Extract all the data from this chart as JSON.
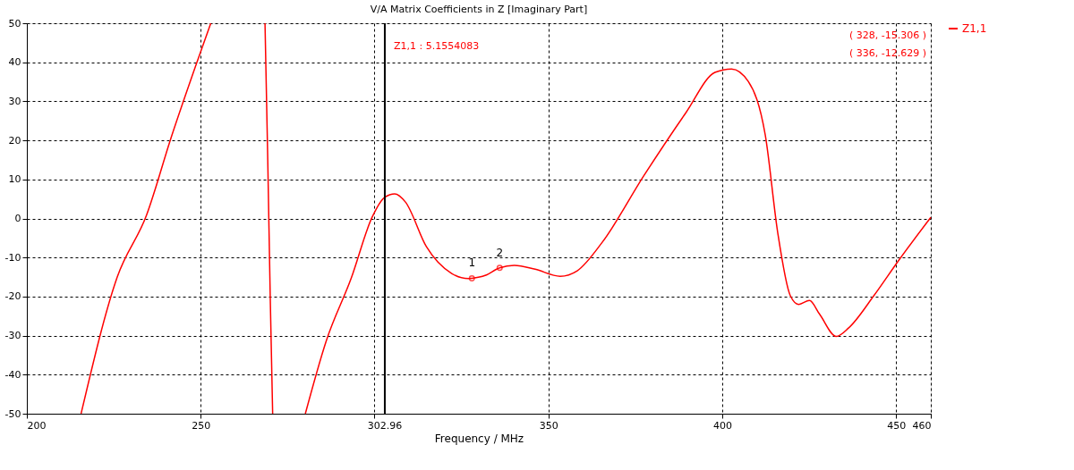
{
  "chart_data": {
    "type": "line",
    "title": "V/A Matrix Coefficients in Z [Imaginary Part]",
    "xlabel": "Frequency / MHz",
    "xlim": [
      200,
      460
    ],
    "xticks": [
      200,
      250,
      {
        "value": 300,
        "label": null
      },
      350,
      400,
      450,
      460
    ],
    "ylim": [
      -50,
      50
    ],
    "yticks": [
      -50,
      -40,
      -30,
      -20,
      -10,
      0,
      10,
      20,
      30,
      40,
      50
    ],
    "grid": true,
    "legend": "top right",
    "series": [
      {
        "name": "Z1,1",
        "color": "#ff0000",
        "x": [
          215.6,
          226,
          234.4,
          241.6,
          248.8,
          252.9,
          null,
          268.5,
          269.3,
          270,
          270.7,
          null,
          280.1,
          286.1,
          293.3,
          299.3,
          302.9,
          305.8,
          308.9,
          314.9,
          322.2,
          327,
          328,
          331.8,
          336,
          340.2,
          346.2,
          353.4,
          358.3,
          365.5,
          377.5,
          389.5,
          397.9,
          402.7,
          407.5,
          412.4,
          416,
          419.6,
          422,
          425.1,
          428,
          432.8,
          436.4,
          443.6,
          450.8,
          460
        ],
        "values": [
          -50,
          -15,
          0.8,
          21,
          39.7,
          50,
          null,
          50,
          14.6,
          -20,
          -50,
          null,
          -50,
          -31.4,
          -15.3,
          0.3,
          5.4,
          6.3,
          4.2,
          -7.2,
          -14.1,
          -15.4,
          -15.306,
          -14.6,
          -12.629,
          -12,
          -13,
          -14.8,
          -13.4,
          -6.1,
          11,
          27,
          37.4,
          38.3,
          35.1,
          21.3,
          -3.8,
          -19.8,
          -22,
          -21,
          -24.5,
          -30.2,
          -28,
          -19.8,
          -10.7,
          0.3
        ]
      },
      {
        "type": "scatter",
        "color": "#ff0000",
        "marker": "circle",
        "x": [
          328,
          336
        ],
        "values": [
          -15.306,
          -12.629
        ]
      }
    ],
    "ref_lines": [
      {
        "axis": "x",
        "value": 302.96,
        "label": "302.96",
        "color": "#000000"
      }
    ],
    "annotations": [
      {
        "text": "1",
        "x": 328,
        "y": -15.306
      },
      {
        "text": "2",
        "x": 336,
        "y": -12.629
      },
      {
        "text": "Z1,1 : 5.1554083",
        "x": 302.96,
        "y": 44
      },
      "( 328, -15.306 )",
      "( 336, -12.629 )"
    ]
  }
}
